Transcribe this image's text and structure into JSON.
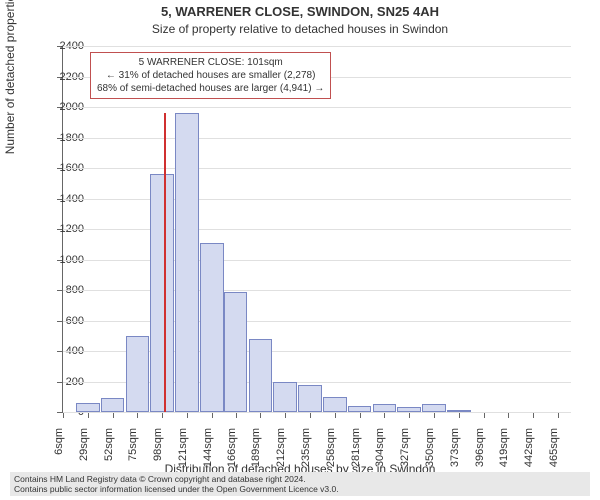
{
  "title_main": "5, WARRENER CLOSE, SWINDON, SN25 4AH",
  "title_sub": "Size of property relative to detached houses in Swindon",
  "y_axis_title": "Number of detached properties",
  "x_axis_title": "Distribution of detached houses by size in Swindon",
  "chart": {
    "type": "histogram",
    "xlim": [
      6,
      477
    ],
    "ylim": [
      0,
      2400
    ],
    "ytick_step": 200,
    "yticks": [
      0,
      200,
      400,
      600,
      800,
      1000,
      1200,
      1400,
      1600,
      1800,
      2000,
      2200,
      2400
    ],
    "xticks": [
      6,
      29,
      52,
      75,
      98,
      121,
      144,
      166,
      189,
      212,
      235,
      258,
      281,
      304,
      327,
      350,
      373,
      396,
      419,
      442,
      465
    ],
    "xtick_labels": [
      "6sqm",
      "29sqm",
      "52sqm",
      "75sqm",
      "98sqm",
      "121sqm",
      "144sqm",
      "166sqm",
      "189sqm",
      "212sqm",
      "235sqm",
      "258sqm",
      "281sqm",
      "304sqm",
      "327sqm",
      "350sqm",
      "373sqm",
      "396sqm",
      "419sqm",
      "442sqm",
      "465sqm"
    ],
    "bar_bin_width": 23,
    "bar_width_ratio": 0.95,
    "bar_fill": "#d4daf0",
    "bar_border": "#7a88c4",
    "background_color": "#ffffff",
    "grid_color": "#e0e0e0",
    "bars": [
      {
        "x": 29,
        "y": 60
      },
      {
        "x": 52,
        "y": 95
      },
      {
        "x": 75,
        "y": 500
      },
      {
        "x": 98,
        "y": 1560
      },
      {
        "x": 121,
        "y": 1960
      },
      {
        "x": 144,
        "y": 1110
      },
      {
        "x": 166,
        "y": 790
      },
      {
        "x": 189,
        "y": 480
      },
      {
        "x": 212,
        "y": 200
      },
      {
        "x": 235,
        "y": 180
      },
      {
        "x": 258,
        "y": 100
      },
      {
        "x": 281,
        "y": 40
      },
      {
        "x": 304,
        "y": 50
      },
      {
        "x": 327,
        "y": 30
      },
      {
        "x": 350,
        "y": 50
      },
      {
        "x": 373,
        "y": 15
      }
    ],
    "marker": {
      "x": 101,
      "color": "#d03030",
      "height_value": 1960
    }
  },
  "annotation": {
    "line1": "5 WARRENER CLOSE: 101sqm",
    "line2": "← 31% of detached houses are smaller (2,278)",
    "line3": "68% of semi-detached houses are larger (4,941) →",
    "border_color": "#c05050",
    "fontsize": 10
  },
  "footer": {
    "line1": "Contains HM Land Registry data © Crown copyright and database right 2024.",
    "line2": "Contains public sector information licensed under the Open Government Licence v3.0.",
    "background": "#e8e8e8"
  }
}
